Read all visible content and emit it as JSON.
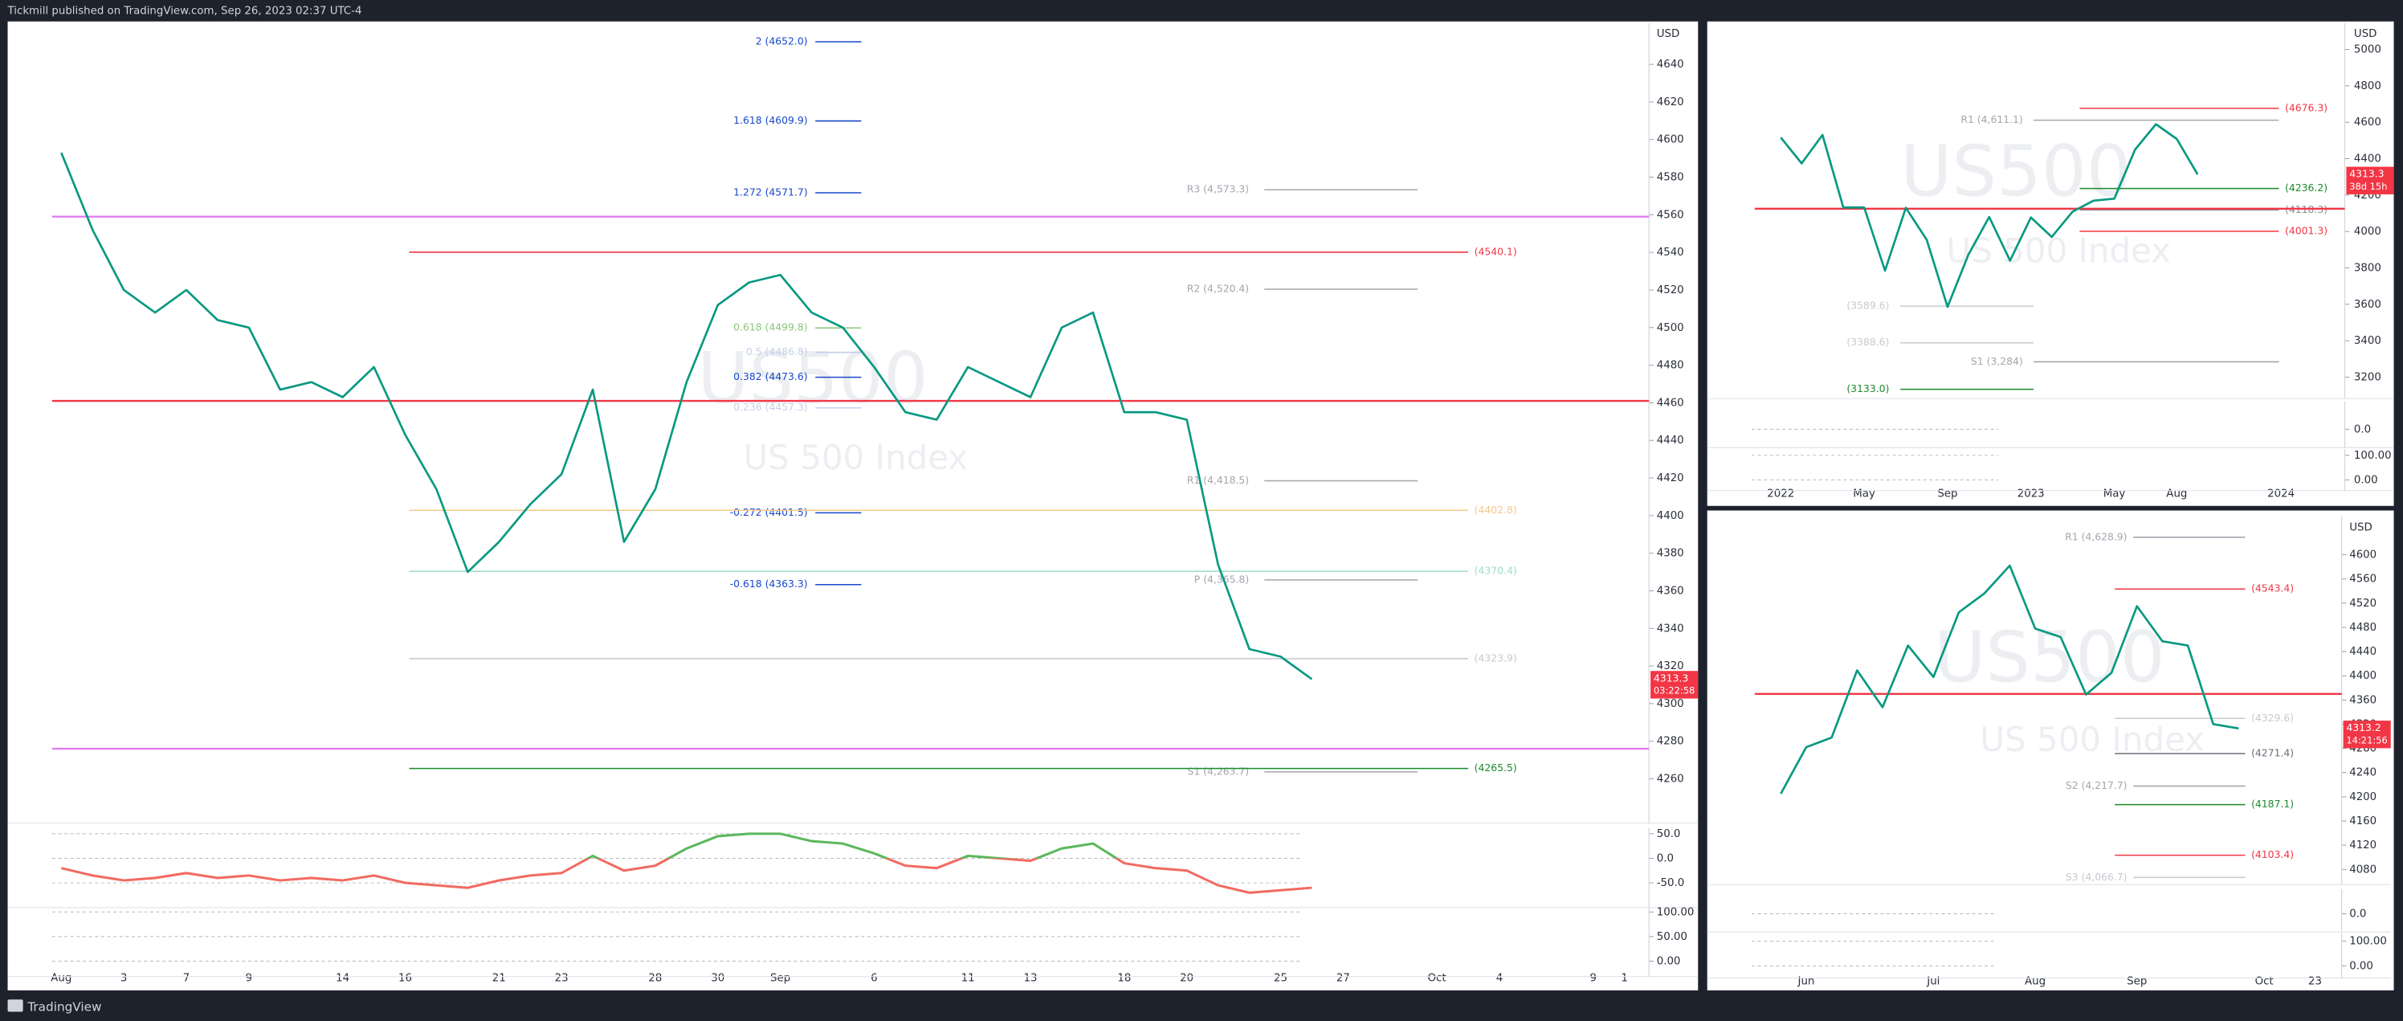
{
  "header": {
    "title": "Tickmill published on TradingView.com, Sep 26, 2023 02:37 UTC-4"
  },
  "footer": {
    "brand": "TradingView"
  },
  "chart_data": [
    {
      "type": "line",
      "watermark_symbol": "US500",
      "watermark_name": "US 500 Index",
      "currency": "USD",
      "color": "#089981",
      "categories": [
        "Aug",
        null,
        "3",
        null,
        "7",
        null,
        "9",
        null,
        null,
        "14",
        null,
        "16",
        null,
        null,
        "21",
        null,
        "23",
        null,
        null,
        "28",
        null,
        "30",
        null,
        "Sep",
        null,
        null,
        "6",
        null,
        null,
        "11",
        null,
        "13",
        null,
        null,
        "18",
        null,
        "20",
        null,
        null,
        "25",
        null,
        "27",
        null,
        null,
        "Oct",
        null,
        "4",
        null,
        null,
        "9",
        "1"
      ],
      "values": [
        4593,
        4552,
        4520,
        4508,
        4520,
        4504,
        4500,
        4467,
        4471,
        4463,
        4479,
        4443,
        4414,
        4370,
        4386,
        4406,
        4422,
        4467,
        4386,
        4414,
        4471,
        4512,
        4524,
        4528,
        4508,
        4500,
        4479,
        4455,
        4451,
        4479,
        4471,
        4463,
        4500,
        4508,
        4455,
        4455,
        4451,
        4374,
        4329,
        4325,
        4313,
        null,
        null,
        null,
        null,
        null,
        null,
        null,
        null,
        null,
        null
      ],
      "ylim": [
        4238,
        4662
      ],
      "yticks": [
        4640,
        4620,
        4600,
        4580,
        4560,
        4540,
        4520,
        4500,
        4480,
        4460,
        4440,
        4420,
        4400,
        4380,
        4360,
        4340,
        4320,
        4300,
        4280,
        4260
      ],
      "last_price": 4313.3,
      "countdown": "03:22:58",
      "levels": [
        {
          "kind": "fib",
          "label": "2 (4652.0)",
          "value": 4652.0,
          "color": "#1848cc"
        },
        {
          "kind": "fib",
          "label": "1.618 (4609.9)",
          "value": 4609.9,
          "color": "#1848cc"
        },
        {
          "kind": "fib",
          "label": "1.272 (4571.7)",
          "value": 4571.7,
          "color": "#1848cc"
        },
        {
          "kind": "fib",
          "label": "0.618 (4499.8)",
          "value": 4499.8,
          "color": "#8cc67a"
        },
        {
          "kind": "fib",
          "label": "0.5 (4486.8)",
          "value": 4486.8,
          "color": "#c5cfe8"
        },
        {
          "kind": "fib",
          "label": "0.382 (4473.6)",
          "value": 4473.6,
          "color": "#1848cc"
        },
        {
          "kind": "fib",
          "label": "0.236 (4457.3)",
          "value": 4457.3,
          "color": "#c5cfe8"
        },
        {
          "kind": "fib",
          "label": "-0.272 (4401.5)",
          "value": 4401.5,
          "color": "#1848cc"
        },
        {
          "kind": "fib",
          "label": "-0.618 (4363.3)",
          "value": 4363.3,
          "color": "#1848cc"
        },
        {
          "kind": "pivot",
          "label": "R3 (4,573.3)",
          "value": 4573.3,
          "color": "#a3a6ae"
        },
        {
          "kind": "pivot",
          "label": "R2 (4,520.4)",
          "value": 4520.4,
          "color": "#a3a6ae"
        },
        {
          "kind": "pivot",
          "label": "R1 (4,418.5)",
          "value": 4418.5,
          "color": "#a3a6ae"
        },
        {
          "kind": "pivot",
          "label": "P (4,365.8)",
          "value": 4365.8,
          "color": "#a3a6ae"
        },
        {
          "kind": "pivot",
          "label": "S1 (4,263.7)",
          "value": 4263.7,
          "color": "#a3a6ae"
        },
        {
          "kind": "zone",
          "label": "(4540.1)",
          "value": 4540.1,
          "color": "#f23645"
        },
        {
          "kind": "zone",
          "label": "(4402.8)",
          "value": 4402.8,
          "color": "#f5c98e"
        },
        {
          "kind": "zone",
          "label": "(4370.4)",
          "value": 4370.4,
          "color": "#9fdcc4"
        },
        {
          "kind": "zone",
          "label": "(4323.9)",
          "value": 4323.9,
          "color": "#c8cad0"
        },
        {
          "kind": "zone",
          "label": "(4265.5)",
          "value": 4265.5,
          "color": "#1b8a2a"
        },
        {
          "kind": "line",
          "value": 4461,
          "color": "#f23645"
        },
        {
          "kind": "line",
          "value": 4559,
          "color": "#e07cf0"
        },
        {
          "kind": "line",
          "value": 4276,
          "color": "#e07cf0"
        }
      ]
    },
    {
      "type": "oscillator",
      "color": "#5cb85c",
      "down_color": "#f26b62",
      "values": [
        -20,
        -35,
        -45,
        -40,
        -30,
        -40,
        -35,
        -45,
        -40,
        -45,
        -35,
        -50,
        -55,
        -60,
        -45,
        -35,
        -30,
        5,
        -25,
        -15,
        20,
        45,
        50,
        50,
        35,
        30,
        10,
        -15,
        -20,
        5,
        0,
        -5,
        20,
        30,
        -10,
        -20,
        -25,
        -55,
        -70,
        -65,
        -60
      ],
      "ylim": [
        -94,
        62
      ],
      "yticks": [
        {
          "value": 50,
          "label": "50.0"
        },
        {
          "value": 0,
          "label": "0.0"
        },
        {
          "value": -50,
          "label": "-50.0"
        }
      ]
    },
    {
      "type": "oscillator",
      "ylim": [
        -25,
        109
      ],
      "yticks": [
        {
          "value": 100,
          "label": "100.00"
        },
        {
          "value": 50,
          "label": "50.00"
        },
        {
          "value": 0,
          "label": "0.00"
        }
      ]
    },
    {
      "type": "line",
      "watermark_symbol": "US500",
      "watermark_name": "US 500 Index",
      "currency": "USD",
      "color": "#089981",
      "categories": [
        "2022",
        null,
        null,
        null,
        "May",
        null,
        null,
        null,
        "Sep",
        null,
        null,
        null,
        "2023",
        null,
        null,
        null,
        "May",
        null,
        null,
        "Aug",
        null,
        null,
        null,
        null,
        "2024"
      ],
      "values": [
        4516,
        4374,
        4530,
        4132,
        4132,
        3785,
        4130,
        3955,
        3586,
        3872,
        4080,
        3840,
        4077,
        3970,
        4109,
        4169,
        4180,
        4450,
        4589,
        4508,
        4313,
        null,
        null,
        null,
        null
      ],
      "ylim": [
        3099,
        5145
      ],
      "yticks": [
        5000,
        4800,
        4600,
        4400,
        4200,
        4000,
        3800,
        3600,
        3400,
        3200
      ],
      "last_price": 4313.3,
      "countdown": "38d 15h",
      "levels": [
        {
          "kind": "pivot",
          "label": "R1 (4,611.1)",
          "value": 4611.1,
          "color": "#a3a6ae"
        },
        {
          "kind": "pivot",
          "label": "S1 (3,284)",
          "value": 3284,
          "color": "#a3a6ae"
        },
        {
          "kind": "zone",
          "label": "(4676.3)",
          "value": 4676.3,
          "color": "#f23645"
        },
        {
          "kind": "zone",
          "label": "(4236.2)",
          "value": 4236.2,
          "color": "#1b8a2a"
        },
        {
          "kind": "zone",
          "label": "(4118.3)",
          "value": 4118.3,
          "color": "#8a8d96"
        },
        {
          "kind": "zone",
          "label": "(4001.3)",
          "value": 4001.3,
          "color": "#f23645"
        },
        {
          "kind": "zoneL",
          "label": "(3589.6)",
          "value": 3589.6,
          "color": "#c8cad0"
        },
        {
          "kind": "zoneL",
          "label": "(3388.6)",
          "value": 3388.6,
          "color": "#c8cad0"
        },
        {
          "kind": "zoneL",
          "label": "(3133.0)",
          "value": 3133.0,
          "color": "#1b8a2a"
        },
        {
          "kind": "line",
          "value": 4125,
          "color": "#f23645"
        }
      ]
    },
    {
      "type": "oscillator",
      "ylim": [
        -50,
        90
      ],
      "yticks": [
        {
          "value": 0,
          "label": "0.0"
        }
      ]
    },
    {
      "type": "oscillator",
      "ylim": [
        -31,
        125
      ],
      "yticks": [
        {
          "value": 100,
          "label": "100.00"
        },
        {
          "value": 0,
          "label": "0.00"
        }
      ]
    },
    {
      "type": "line",
      "watermark_symbol": "US500",
      "watermark_name": "US 500 Index",
      "currency": "USD",
      "color": "#089981",
      "categories": [
        null,
        "Jun",
        null,
        null,
        null,
        null,
        "Jul",
        null,
        null,
        null,
        "Aug",
        null,
        null,
        null,
        "Sep",
        null,
        null,
        null,
        null,
        "Oct",
        null,
        "23"
      ],
      "values": [
        4205,
        4282,
        4298,
        4409,
        4348,
        4450,
        4398,
        4505,
        4536,
        4582,
        4478,
        4464,
        4369,
        4405,
        4515,
        4457,
        4450,
        4320,
        4313,
        null,
        null,
        null
      ],
      "ylim": [
        4060,
        4663
      ],
      "yticks": [
        4600,
        4560,
        4520,
        4480,
        4440,
        4400,
        4360,
        4320,
        4280,
        4240,
        4200,
        4160,
        4120,
        4080
      ],
      "last_price": 4313.2,
      "countdown": "14:21:56",
      "levels": [
        {
          "kind": "pivot",
          "label": "R1 (4,628.9)",
          "value": 4628.9,
          "color": "#a3a6ae"
        },
        {
          "kind": "pivot",
          "label": "S2 (4,217.7)",
          "value": 4217.7,
          "color": "#a3a6ae"
        },
        {
          "kind": "pivot",
          "label": "S3 (4,066.7)",
          "value": 4066.7,
          "color": "#c8cad0"
        },
        {
          "kind": "zone",
          "label": "(4543.4)",
          "value": 4543.4,
          "color": "#f23645"
        },
        {
          "kind": "zone",
          "label": "(4329.6)",
          "value": 4329.6,
          "color": "#c8cad0"
        },
        {
          "kind": "zone",
          "label": "(4271.4)",
          "value": 4271.4,
          "color": "#6b6e78"
        },
        {
          "kind": "zone",
          "label": "(4187.1)",
          "value": 4187.1,
          "color": "#1b8a2a"
        },
        {
          "kind": "zone",
          "label": "(4103.4)",
          "value": 4103.4,
          "color": "#f23645"
        },
        {
          "kind": "line",
          "value": 4370,
          "color": "#f23645"
        }
      ]
    },
    {
      "type": "oscillator",
      "ylim": [
        -62,
        100
      ],
      "yticks": [
        {
          "value": 0,
          "label": "0.0"
        }
      ]
    },
    {
      "type": "oscillator",
      "ylim": [
        -37,
        131
      ],
      "yticks": [
        {
          "value": 100,
          "label": "100.00"
        },
        {
          "value": 0,
          "label": "0.00"
        }
      ]
    }
  ]
}
